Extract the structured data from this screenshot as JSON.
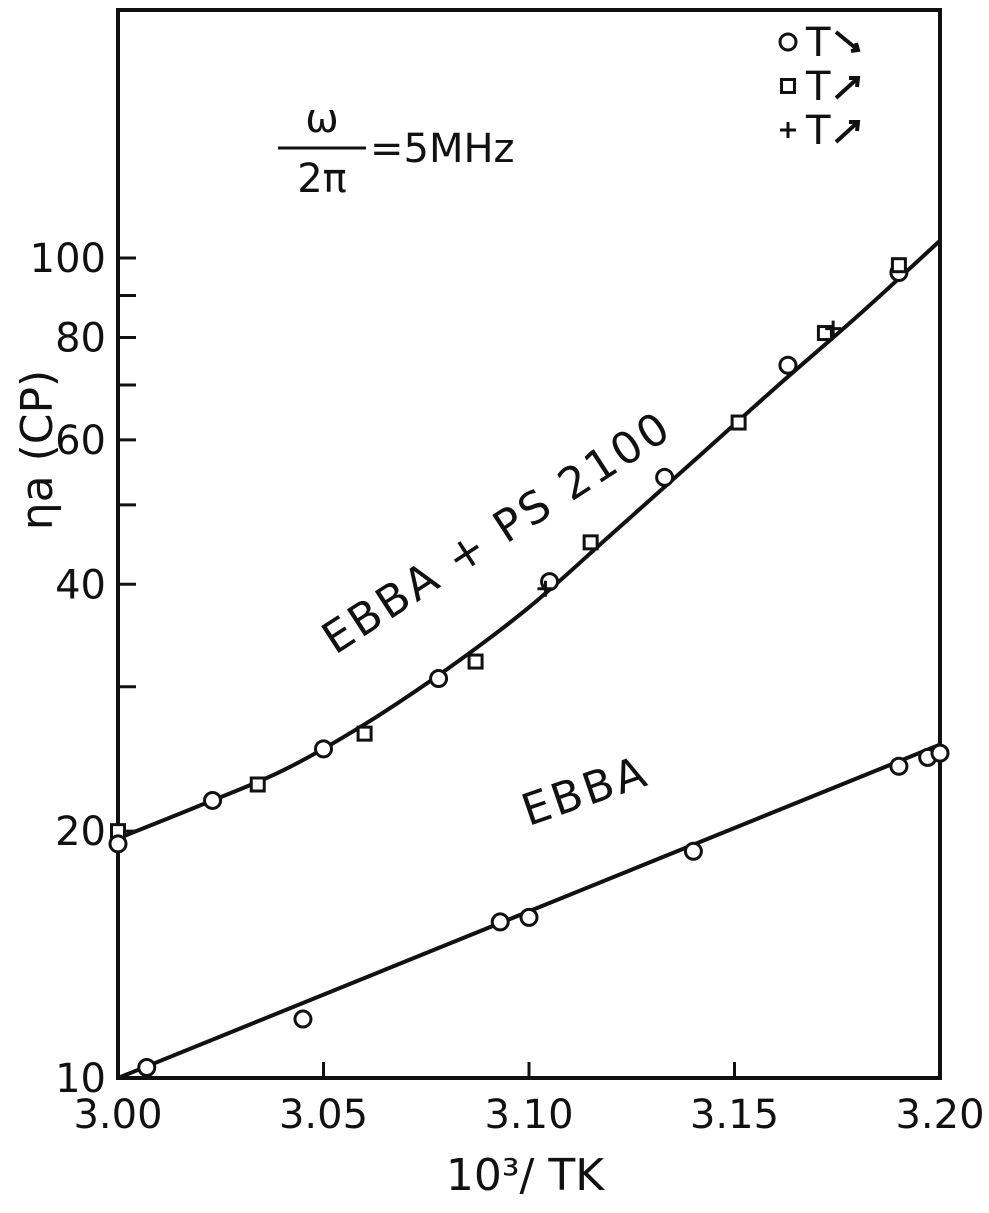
{
  "chart_data": {
    "type": "scatter",
    "title": "",
    "xlabel": "10³/ TK",
    "ylabel": "ηa (CP)",
    "xlim": [
      3.0,
      3.2
    ],
    "ylim": [
      10,
      110
    ],
    "yscale": "log",
    "grid": false,
    "x_ticks": [
      3.0,
      3.05,
      3.1,
      3.15,
      3.2
    ],
    "x_tick_labels": [
      "3.00",
      "3.05",
      "3.10",
      "3.15",
      "3.20"
    ],
    "y_ticks": [
      10,
      20,
      40,
      60,
      80,
      100
    ],
    "y_tick_labels": [
      "10",
      "20",
      "40",
      "60",
      "80",
      "100"
    ],
    "y_minor_ticks": [
      30,
      50,
      70,
      90
    ],
    "annotation": {
      "numerator": "ω",
      "denominator": "2π",
      "value": "=5MHz"
    },
    "legend": {
      "placement": "top-right",
      "entries": [
        {
          "marker": "circle",
          "label": "T",
          "arrow": "down"
        },
        {
          "marker": "square",
          "label": "T",
          "arrow": "up"
        },
        {
          "marker": "plus",
          "label": "T",
          "arrow": "up"
        }
      ]
    },
    "series": [
      {
        "name": "EBBA + PS 2100",
        "curve": [
          [
            3.0,
            19.6
          ],
          [
            3.02,
            21.5
          ],
          [
            3.04,
            23.7
          ],
          [
            3.06,
            27.0
          ],
          [
            3.08,
            31.5
          ],
          [
            3.1,
            37.5
          ],
          [
            3.12,
            46.0
          ],
          [
            3.14,
            56.5
          ],
          [
            3.16,
            69.5
          ],
          [
            3.18,
            85.0
          ],
          [
            3.2,
            105.0
          ]
        ],
        "points": [
          {
            "x": 3.0,
            "y": 20.0,
            "marker": "square"
          },
          {
            "x": 3.0,
            "y": 19.3,
            "marker": "circle"
          },
          {
            "x": 3.023,
            "y": 21.8,
            "marker": "circle"
          },
          {
            "x": 3.034,
            "y": 22.8,
            "marker": "square"
          },
          {
            "x": 3.05,
            "y": 25.2,
            "marker": "circle"
          },
          {
            "x": 3.06,
            "y": 26.3,
            "marker": "square"
          },
          {
            "x": 3.078,
            "y": 30.7,
            "marker": "circle"
          },
          {
            "x": 3.087,
            "y": 32.2,
            "marker": "square"
          },
          {
            "x": 3.105,
            "y": 40.3,
            "marker": "circle"
          },
          {
            "x": 3.104,
            "y": 39.5,
            "marker": "plus"
          },
          {
            "x": 3.115,
            "y": 45.0,
            "marker": "square"
          },
          {
            "x": 3.133,
            "y": 54.0,
            "marker": "circle"
          },
          {
            "x": 3.151,
            "y": 63.0,
            "marker": "square"
          },
          {
            "x": 3.163,
            "y": 74.0,
            "marker": "circle"
          },
          {
            "x": 3.172,
            "y": 81.0,
            "marker": "square"
          },
          {
            "x": 3.174,
            "y": 82.0,
            "marker": "plus"
          },
          {
            "x": 3.19,
            "y": 96.0,
            "marker": "circle"
          },
          {
            "x": 3.19,
            "y": 98.0,
            "marker": "square"
          }
        ]
      },
      {
        "name": "EBBA",
        "curve": [
          [
            3.0,
            10.0
          ],
          [
            3.2,
            25.5
          ]
        ],
        "points": [
          {
            "x": 3.007,
            "y": 10.3,
            "marker": "circle"
          },
          {
            "x": 3.045,
            "y": 11.8,
            "marker": "circle"
          },
          {
            "x": 3.093,
            "y": 15.5,
            "marker": "circle"
          },
          {
            "x": 3.1,
            "y": 15.7,
            "marker": "circle"
          },
          {
            "x": 3.14,
            "y": 18.9,
            "marker": "circle"
          },
          {
            "x": 3.19,
            "y": 24.0,
            "marker": "circle"
          },
          {
            "x": 3.197,
            "y": 24.6,
            "marker": "circle"
          },
          {
            "x": 3.2,
            "y": 24.9,
            "marker": "circle"
          }
        ]
      }
    ]
  }
}
